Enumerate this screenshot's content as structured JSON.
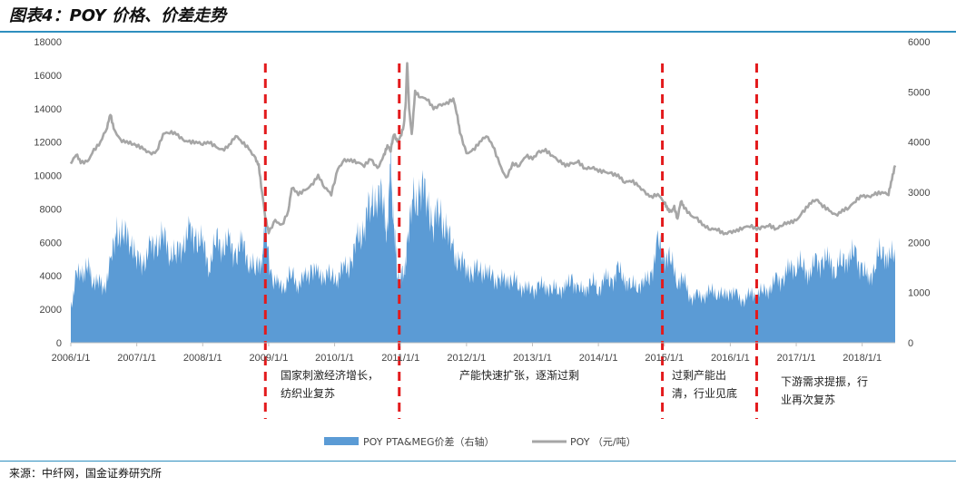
{
  "page": {
    "title": "图表4：POY 价格、价差走势",
    "source": "来源：中纤网，国金证券研究所"
  },
  "chart_data": {
    "type": "area+line",
    "xlabel": "",
    "ylabel_left": "",
    "ylabel_right": "",
    "ylim_left": [
      0,
      18000
    ],
    "yticks_left": [
      "0",
      "2000",
      "4000",
      "6000",
      "8000",
      "10000",
      "12000",
      "14000",
      "16000",
      "18000"
    ],
    "ylim_right": [
      0,
      6000
    ],
    "yticks_right": [
      "0",
      "1000",
      "2000",
      "3000",
      "4000",
      "5000",
      "6000"
    ],
    "xlim": [
      2006.0,
      2018.5
    ],
    "xticks": [
      {
        "x": 2006.0,
        "label": "2006/1/1"
      },
      {
        "x": 2007.0,
        "label": "2007/1/1"
      },
      {
        "x": 2008.0,
        "label": "2008/1/1"
      },
      {
        "x": 2009.0,
        "label": "2009/1/1"
      },
      {
        "x": 2010.0,
        "label": "2010/1/1"
      },
      {
        "x": 2011.0,
        "label": "2011/1/1"
      },
      {
        "x": 2012.0,
        "label": "2012/1/1"
      },
      {
        "x": 2013.0,
        "label": "2013/1/1"
      },
      {
        "x": 2014.0,
        "label": "2014/1/1"
      },
      {
        "x": 2015.0,
        "label": "2015/1/1"
      },
      {
        "x": 2016.0,
        "label": "2016/1/1"
      },
      {
        "x": 2017.0,
        "label": "2017/1/1"
      },
      {
        "x": 2018.0,
        "label": "2018/1/1"
      }
    ],
    "series": [
      {
        "name": "POY PTA&MEG价差（右轴）",
        "axis": "right",
        "kind": "area",
        "color": "#5B9BD5",
        "points": [
          [
            2006.0,
            700
          ],
          [
            2006.08,
            1300
          ],
          [
            2006.17,
            1400
          ],
          [
            2006.25,
            1500
          ],
          [
            2006.33,
            1300
          ],
          [
            2006.42,
            1200
          ],
          [
            2006.5,
            1100
          ],
          [
            2006.6,
            1500
          ],
          [
            2006.7,
            2300
          ],
          [
            2006.8,
            2050
          ],
          [
            2006.9,
            2200
          ],
          [
            2007.0,
            1600
          ],
          [
            2007.1,
            1650
          ],
          [
            2007.2,
            1800
          ],
          [
            2007.3,
            2000
          ],
          [
            2007.4,
            2050
          ],
          [
            2007.5,
            1900
          ],
          [
            2007.6,
            1700
          ],
          [
            2007.7,
            2050
          ],
          [
            2007.8,
            2100
          ],
          [
            2007.9,
            2150
          ],
          [
            2008.0,
            1900
          ],
          [
            2008.1,
            1600
          ],
          [
            2008.2,
            2000
          ],
          [
            2008.3,
            2000
          ],
          [
            2008.4,
            1900
          ],
          [
            2008.5,
            1800
          ],
          [
            2008.6,
            1900
          ],
          [
            2008.7,
            1700
          ],
          [
            2008.8,
            1400
          ],
          [
            2008.9,
            1800
          ],
          [
            2008.95,
            2250
          ],
          [
            2009.05,
            1300
          ],
          [
            2009.15,
            1100
          ],
          [
            2009.25,
            1200
          ],
          [
            2009.35,
            1350
          ],
          [
            2009.45,
            1200
          ],
          [
            2009.55,
            1250
          ],
          [
            2009.65,
            1500
          ],
          [
            2009.75,
            1300
          ],
          [
            2009.85,
            1400
          ],
          [
            2009.95,
            1300
          ],
          [
            2010.05,
            1350
          ],
          [
            2010.15,
            1450
          ],
          [
            2010.25,
            1600
          ],
          [
            2010.35,
            2000
          ],
          [
            2010.45,
            2400
          ],
          [
            2010.55,
            2700
          ],
          [
            2010.65,
            3100
          ],
          [
            2010.75,
            2600
          ],
          [
            2010.8,
            2200
          ],
          [
            2010.85,
            3500
          ],
          [
            2010.9,
            2400
          ],
          [
            2010.95,
            1300
          ],
          [
            2011.0,
            1400
          ],
          [
            2011.05,
            1300
          ],
          [
            2011.1,
            2000
          ],
          [
            2011.2,
            2800
          ],
          [
            2011.3,
            3050
          ],
          [
            2011.4,
            2900
          ],
          [
            2011.5,
            2400
          ],
          [
            2011.6,
            2600
          ],
          [
            2011.7,
            2200
          ],
          [
            2011.8,
            1800
          ],
          [
            2011.9,
            1600
          ],
          [
            2012.0,
            1500
          ],
          [
            2012.1,
            1400
          ],
          [
            2012.2,
            1500
          ],
          [
            2012.3,
            1350
          ],
          [
            2012.4,
            1300
          ],
          [
            2012.5,
            1200
          ],
          [
            2012.6,
            1300
          ],
          [
            2012.7,
            1250
          ],
          [
            2012.8,
            1150
          ],
          [
            2012.9,
            1050
          ],
          [
            2013.0,
            1050
          ],
          [
            2013.1,
            1100
          ],
          [
            2013.2,
            1150
          ],
          [
            2013.3,
            1050
          ],
          [
            2013.4,
            1100
          ],
          [
            2013.5,
            1050
          ],
          [
            2013.6,
            1300
          ],
          [
            2013.7,
            1000
          ],
          [
            2013.8,
            1100
          ],
          [
            2013.9,
            1200
          ],
          [
            2014.0,
            1100
          ],
          [
            2014.1,
            1250
          ],
          [
            2014.2,
            1250
          ],
          [
            2014.3,
            1400
          ],
          [
            2014.4,
            1300
          ],
          [
            2014.5,
            1100
          ],
          [
            2014.6,
            1200
          ],
          [
            2014.7,
            1150
          ],
          [
            2014.8,
            1400
          ],
          [
            2014.9,
            1900
          ],
          [
            2015.0,
            1800
          ],
          [
            2015.1,
            1600
          ],
          [
            2015.2,
            1300
          ],
          [
            2015.3,
            1200
          ],
          [
            2015.4,
            900
          ],
          [
            2015.5,
            900
          ],
          [
            2015.6,
            950
          ],
          [
            2015.7,
            1000
          ],
          [
            2015.8,
            1050
          ],
          [
            2015.9,
            900
          ],
          [
            2016.0,
            1050
          ],
          [
            2016.1,
            900
          ],
          [
            2016.2,
            850
          ],
          [
            2016.3,
            950
          ],
          [
            2016.4,
            1000
          ],
          [
            2016.5,
            1000
          ],
          [
            2016.6,
            1100
          ],
          [
            2016.7,
            1200
          ],
          [
            2016.8,
            1300
          ],
          [
            2016.9,
            1450
          ],
          [
            2017.0,
            1600
          ],
          [
            2017.1,
            1500
          ],
          [
            2017.2,
            1400
          ],
          [
            2017.3,
            1550
          ],
          [
            2017.4,
            1650
          ],
          [
            2017.5,
            1600
          ],
          [
            2017.6,
            1500
          ],
          [
            2017.7,
            1600
          ],
          [
            2017.8,
            1750
          ],
          [
            2017.9,
            1700
          ],
          [
            2018.0,
            1500
          ],
          [
            2018.1,
            1200
          ],
          [
            2018.2,
            1650
          ],
          [
            2018.3,
            1800
          ],
          [
            2018.4,
            1750
          ],
          [
            2018.5,
            1650
          ]
        ]
      },
      {
        "name": "POY （元/吨）",
        "axis": "left",
        "kind": "line",
        "color": "#A6A6A6",
        "points": [
          [
            2006.0,
            10700
          ],
          [
            2006.08,
            11300
          ],
          [
            2006.15,
            10800
          ],
          [
            2006.25,
            10800
          ],
          [
            2006.35,
            11500
          ],
          [
            2006.45,
            12000
          ],
          [
            2006.55,
            12900
          ],
          [
            2006.6,
            13700
          ],
          [
            2006.65,
            12800
          ],
          [
            2006.75,
            12100
          ],
          [
            2006.85,
            12000
          ],
          [
            2006.95,
            11900
          ],
          [
            2007.0,
            11800
          ],
          [
            2007.1,
            11600
          ],
          [
            2007.2,
            11300
          ],
          [
            2007.3,
            11400
          ],
          [
            2007.4,
            12500
          ],
          [
            2007.5,
            12600
          ],
          [
            2007.6,
            12500
          ],
          [
            2007.7,
            12100
          ],
          [
            2007.8,
            12000
          ],
          [
            2007.9,
            12000
          ],
          [
            2008.0,
            11900
          ],
          [
            2008.1,
            12000
          ],
          [
            2008.2,
            11700
          ],
          [
            2008.3,
            11500
          ],
          [
            2008.4,
            11800
          ],
          [
            2008.5,
            12400
          ],
          [
            2008.6,
            12000
          ],
          [
            2008.7,
            11600
          ],
          [
            2008.8,
            11000
          ],
          [
            2008.85,
            10600
          ],
          [
            2008.9,
            9000
          ],
          [
            2008.95,
            7500
          ],
          [
            2009.0,
            6600
          ],
          [
            2009.1,
            7300
          ],
          [
            2009.2,
            7000
          ],
          [
            2009.3,
            7900
          ],
          [
            2009.35,
            9300
          ],
          [
            2009.45,
            8900
          ],
          [
            2009.55,
            9100
          ],
          [
            2009.65,
            9400
          ],
          [
            2009.75,
            10000
          ],
          [
            2009.85,
            9300
          ],
          [
            2009.95,
            8900
          ],
          [
            2010.05,
            10400
          ],
          [
            2010.15,
            10900
          ],
          [
            2010.25,
            10900
          ],
          [
            2010.35,
            10800
          ],
          [
            2010.45,
            10600
          ],
          [
            2010.55,
            11000
          ],
          [
            2010.65,
            10400
          ],
          [
            2010.75,
            11200
          ],
          [
            2010.8,
            11800
          ],
          [
            2010.85,
            11500
          ],
          [
            2010.9,
            12500
          ],
          [
            2010.95,
            12000
          ],
          [
            2011.0,
            12300
          ],
          [
            2011.05,
            13000
          ],
          [
            2011.08,
            14500
          ],
          [
            2011.1,
            16800
          ],
          [
            2011.13,
            14000
          ],
          [
            2011.17,
            12400
          ],
          [
            2011.22,
            15000
          ],
          [
            2011.3,
            14700
          ],
          [
            2011.4,
            14600
          ],
          [
            2011.5,
            14000
          ],
          [
            2011.6,
            14200
          ],
          [
            2011.7,
            14300
          ],
          [
            2011.8,
            14600
          ],
          [
            2011.85,
            13800
          ],
          [
            2011.9,
            12600
          ],
          [
            2012.0,
            11300
          ],
          [
            2012.1,
            11500
          ],
          [
            2012.2,
            12000
          ],
          [
            2012.3,
            12400
          ],
          [
            2012.4,
            11800
          ],
          [
            2012.5,
            10700
          ],
          [
            2012.6,
            9800
          ],
          [
            2012.7,
            10700
          ],
          [
            2012.8,
            10600
          ],
          [
            2012.9,
            11200
          ],
          [
            2013.0,
            11000
          ],
          [
            2013.1,
            11400
          ],
          [
            2013.2,
            11500
          ],
          [
            2013.3,
            11200
          ],
          [
            2013.4,
            10900
          ],
          [
            2013.5,
            10600
          ],
          [
            2013.6,
            10700
          ],
          [
            2013.7,
            10800
          ],
          [
            2013.8,
            10400
          ],
          [
            2013.9,
            10500
          ],
          [
            2014.0,
            10300
          ],
          [
            2014.1,
            10200
          ],
          [
            2014.2,
            10100
          ],
          [
            2014.3,
            10000
          ],
          [
            2014.4,
            9600
          ],
          [
            2014.5,
            9700
          ],
          [
            2014.6,
            9400
          ],
          [
            2014.7,
            9000
          ],
          [
            2014.8,
            8700
          ],
          [
            2014.9,
            8900
          ],
          [
            2015.0,
            8400
          ],
          [
            2015.05,
            8000
          ],
          [
            2015.1,
            7800
          ],
          [
            2015.15,
            8100
          ],
          [
            2015.2,
            7400
          ],
          [
            2015.25,
            8500
          ],
          [
            2015.3,
            8100
          ],
          [
            2015.4,
            7600
          ],
          [
            2015.5,
            7400
          ],
          [
            2015.6,
            7000
          ],
          [
            2015.7,
            6800
          ],
          [
            2015.8,
            6800
          ],
          [
            2015.9,
            6500
          ],
          [
            2016.0,
            6600
          ],
          [
            2016.1,
            6700
          ],
          [
            2016.2,
            6900
          ],
          [
            2016.3,
            7000
          ],
          [
            2016.4,
            6800
          ],
          [
            2016.5,
            6900
          ],
          [
            2016.6,
            7000
          ],
          [
            2016.7,
            6800
          ],
          [
            2016.8,
            7100
          ],
          [
            2016.9,
            7200
          ],
          [
            2017.0,
            7300
          ],
          [
            2017.1,
            7800
          ],
          [
            2017.2,
            8300
          ],
          [
            2017.3,
            8600
          ],
          [
            2017.4,
            8200
          ],
          [
            2017.5,
            7900
          ],
          [
            2017.6,
            7600
          ],
          [
            2017.7,
            7900
          ],
          [
            2017.8,
            8100
          ],
          [
            2017.9,
            8500
          ],
          [
            2018.0,
            8800
          ],
          [
            2018.1,
            8700
          ],
          [
            2018.2,
            8900
          ],
          [
            2018.3,
            9000
          ],
          [
            2018.4,
            8900
          ],
          [
            2018.45,
            9800
          ],
          [
            2018.5,
            10600
          ]
        ]
      }
    ],
    "markers": [
      {
        "x": 2008.95,
        "color": "#E31A1C"
      },
      {
        "x": 2010.98,
        "color": "#E31A1C"
      },
      {
        "x": 2014.97,
        "color": "#E31A1C"
      },
      {
        "x": 2016.4,
        "color": "#E31A1C"
      }
    ],
    "annotations": [
      {
        "lines": [
          "国家刺激经济增长，",
          "纺织业复苏"
        ]
      },
      {
        "lines": [
          "产能快速扩张，逐渐过剩"
        ]
      },
      {
        "lines": [
          "过剩产能出",
          "清，行业见底"
        ]
      },
      {
        "lines": [
          "下游需求提振，行",
          "业再次复苏"
        ]
      }
    ],
    "legend": {
      "position": "bottom"
    }
  }
}
